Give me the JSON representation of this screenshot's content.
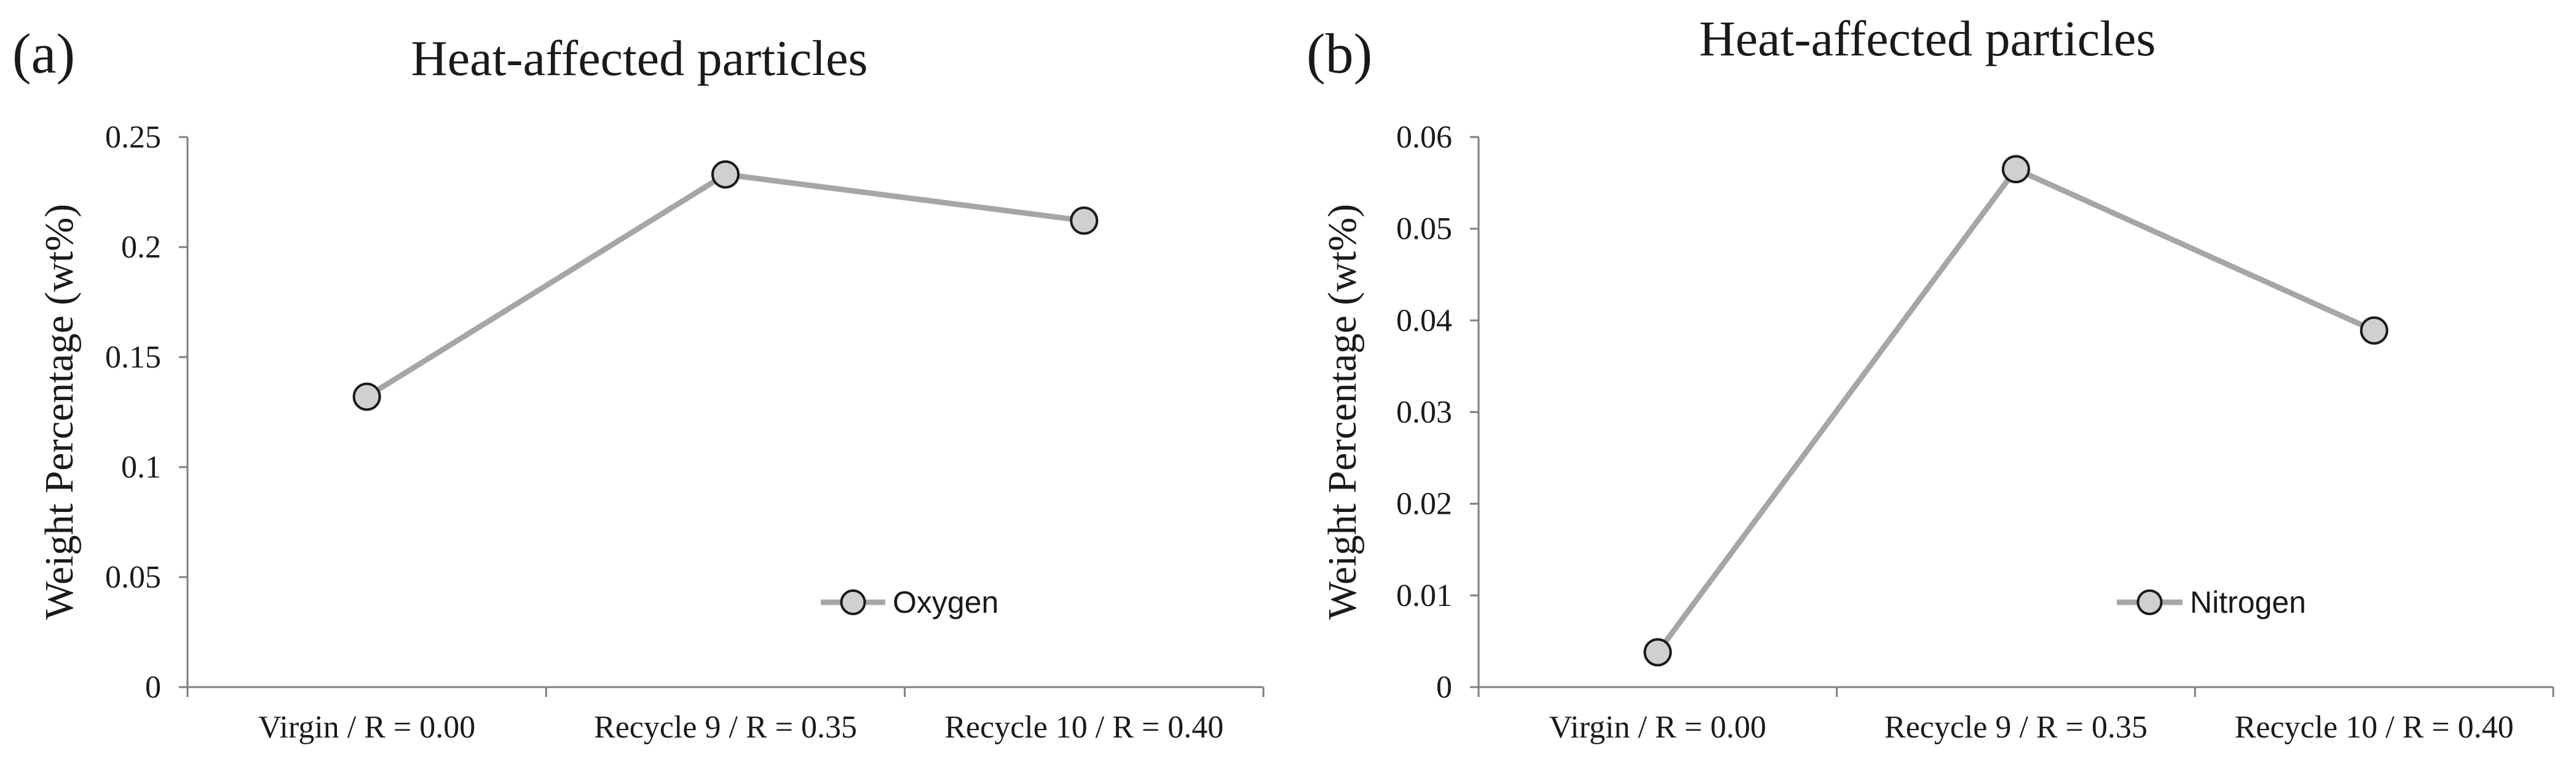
{
  "chart_data": [
    {
      "type": "line",
      "panel_label": "(a)",
      "title": "Heat-affected particles",
      "xlabel": "",
      "ylabel": "Weight Percentage (wt%)",
      "categories": [
        "Virgin / R = 0.00",
        "Recycle 9 / R = 0.35",
        "Recycle 10 / R = 0.40"
      ],
      "series": [
        {
          "name": "Oxygen",
          "values": [
            0.132,
            0.233,
            0.212
          ]
        }
      ],
      "ylim": [
        0,
        0.25
      ],
      "yticks": [
        0,
        0.05,
        0.1,
        0.15,
        0.2,
        0.25
      ],
      "ytick_labels": [
        "0",
        "0.05",
        "0.1",
        "0.15",
        "0.2",
        "0.25"
      ],
      "grid": false,
      "legend": "bottom-right",
      "colors": {
        "line": "#a6a6a6",
        "marker_fill": "#d0d0d0",
        "marker_edge": "#1a1a1a",
        "axis": "#7f7f7f",
        "text": "#1a1a1a"
      }
    },
    {
      "type": "line",
      "panel_label": "(b)",
      "title": "Heat-affected particles",
      "xlabel": "",
      "ylabel": "Weight Percentage (wt%)",
      "categories": [
        "Virgin / R = 0.00",
        "Recycle 9 / R = 0.35",
        "Recycle 10 / R = 0.40"
      ],
      "series": [
        {
          "name": "Nitrogen",
          "values": [
            0.0038,
            0.0565,
            0.0389
          ]
        }
      ],
      "ylim": [
        0,
        0.06
      ],
      "yticks": [
        0,
        0.01,
        0.02,
        0.03,
        0.04,
        0.05,
        0.06
      ],
      "ytick_labels": [
        "0",
        "0.01",
        "0.02",
        "0.03",
        "0.04",
        "0.05",
        "0.06"
      ],
      "grid": false,
      "legend": "bottom-right",
      "colors": {
        "line": "#a6a6a6",
        "marker_fill": "#d0d0d0",
        "marker_edge": "#1a1a1a",
        "axis": "#7f7f7f",
        "text": "#1a1a1a"
      }
    }
  ]
}
